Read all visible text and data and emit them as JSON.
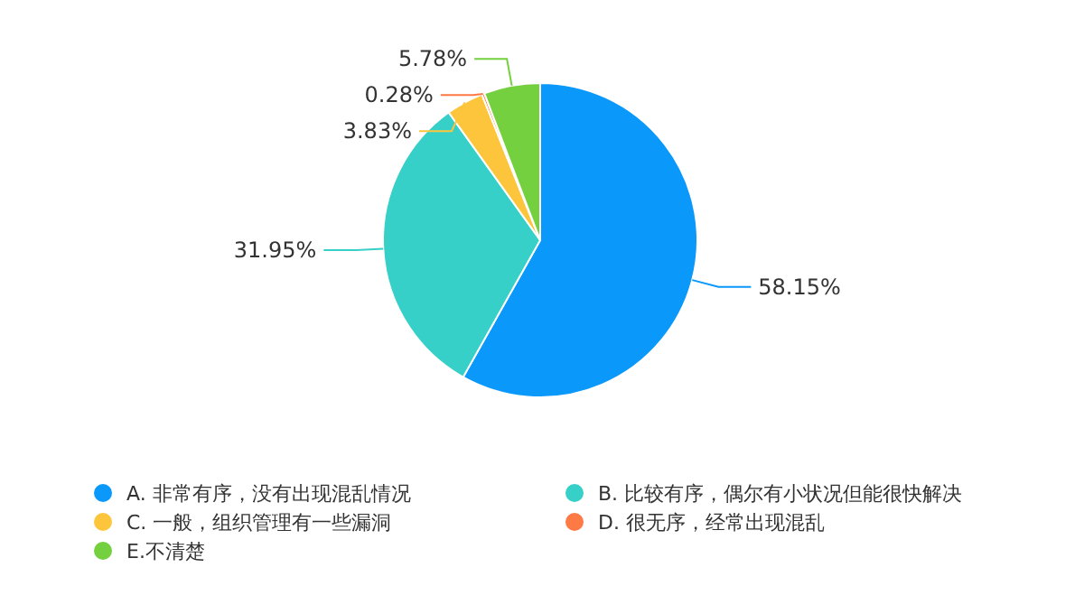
{
  "chart_data": {
    "type": "pie",
    "categories": [
      "A. 非常有序，没有出现混乱情况",
      "B. 比较有序，偶尔有小状况但能很快解决",
      "C. 一般，组织管理有一些漏洞",
      "D. 很无序，经常出现混乱",
      "E.不清楚"
    ],
    "values": [
      58.15,
      31.95,
      3.83,
      0.28,
      5.78
    ],
    "colors": [
      "#0a98fb",
      "#37d0c8",
      "#fdc53c",
      "#fe7a45",
      "#74d03f"
    ],
    "value_labels": [
      "58.15%",
      "31.95%",
      "3.83%",
      "0.28%",
      "5.78%"
    ],
    "legend": "bottom"
  }
}
